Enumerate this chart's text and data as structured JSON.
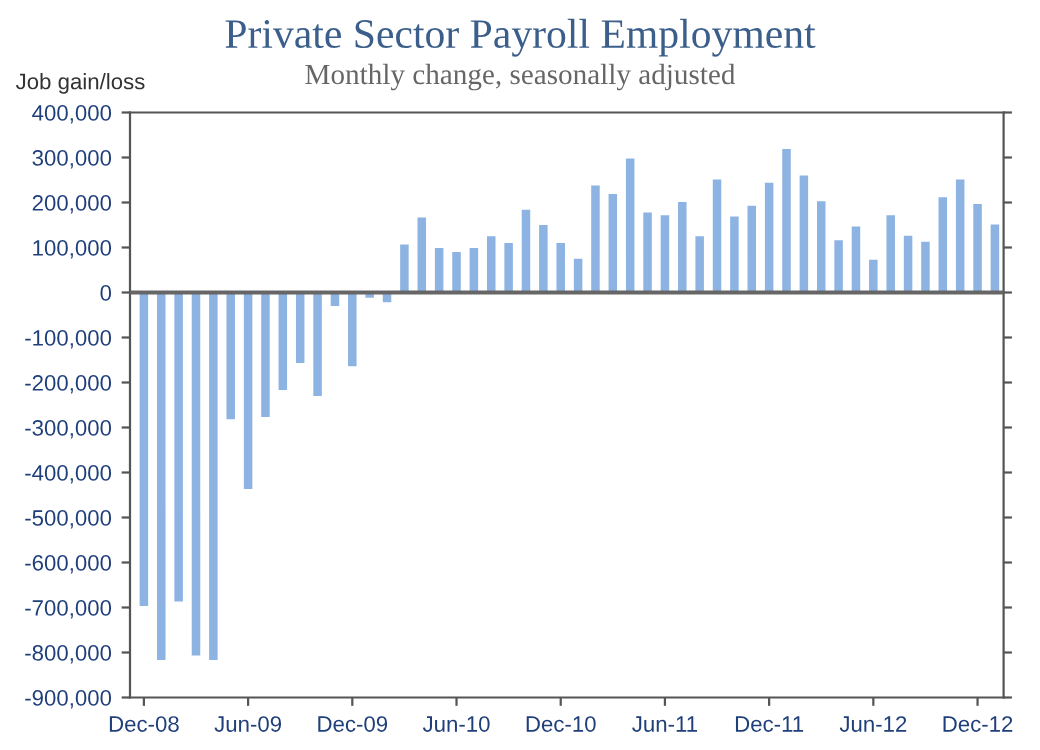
{
  "chart_data": {
    "type": "bar",
    "title": "Private Sector Payroll Employment",
    "subtitle": "Monthly change, seasonally adjusted",
    "ylabel": "Job gain/loss",
    "categories": [
      "Dec-08",
      null,
      null,
      null,
      null,
      null,
      "Jun-09",
      null,
      null,
      null,
      null,
      null,
      "Dec-09",
      null,
      null,
      null,
      null,
      null,
      "Jun-10",
      null,
      null,
      null,
      null,
      null,
      "Dec-10",
      null,
      null,
      null,
      null,
      null,
      "Jun-11",
      null,
      null,
      null,
      null,
      null,
      "Dec-11",
      null,
      null,
      null,
      null,
      null,
      "Jun-12",
      null,
      null,
      null,
      null,
      null,
      "Dec-12",
      null
    ],
    "values": [
      -700000,
      -820000,
      -690000,
      -810000,
      -820000,
      -285000,
      -440000,
      -280000,
      -220000,
      -160000,
      -233000,
      -33000,
      -167000,
      -15000,
      -25000,
      110000,
      170000,
      102000,
      93000,
      102000,
      128000,
      113000,
      187000,
      153000,
      113000,
      78000,
      241000,
      222000,
      301000,
      181000,
      175000,
      204000,
      128000,
      254000,
      172000,
      196000,
      247000,
      322000,
      263000,
      206000,
      119000,
      150000,
      76000,
      175000,
      129000,
      116000,
      215000,
      254000,
      200000,
      154000
    ],
    "color": "#8db3e2",
    "ylim": [
      -900000,
      400000
    ],
    "yticks": [
      {
        "value": -900000,
        "label": "-900,000"
      },
      {
        "value": -800000,
        "label": "-800,000"
      },
      {
        "value": -700000,
        "label": "-700,000"
      },
      {
        "value": -600000,
        "label": "-600,000"
      },
      {
        "value": -500000,
        "label": "-500,000"
      },
      {
        "value": -400000,
        "label": "-400,000"
      },
      {
        "value": -300000,
        "label": "-300,000"
      },
      {
        "value": -200000,
        "label": "-200,000"
      },
      {
        "value": -100000,
        "label": "-100,000"
      },
      0,
      {
        "value": 100000,
        "label": "100,000"
      },
      {
        "value": 200000,
        "label": "200,000"
      },
      {
        "value": 300000,
        "label": "300,000"
      },
      {
        "value": 400000,
        "label": "400,000"
      }
    ],
    "ref_lines": [
      {
        "axis": "y",
        "value": 0,
        "color": "#666666"
      }
    ],
    "grid": false,
    "legend": false
  }
}
